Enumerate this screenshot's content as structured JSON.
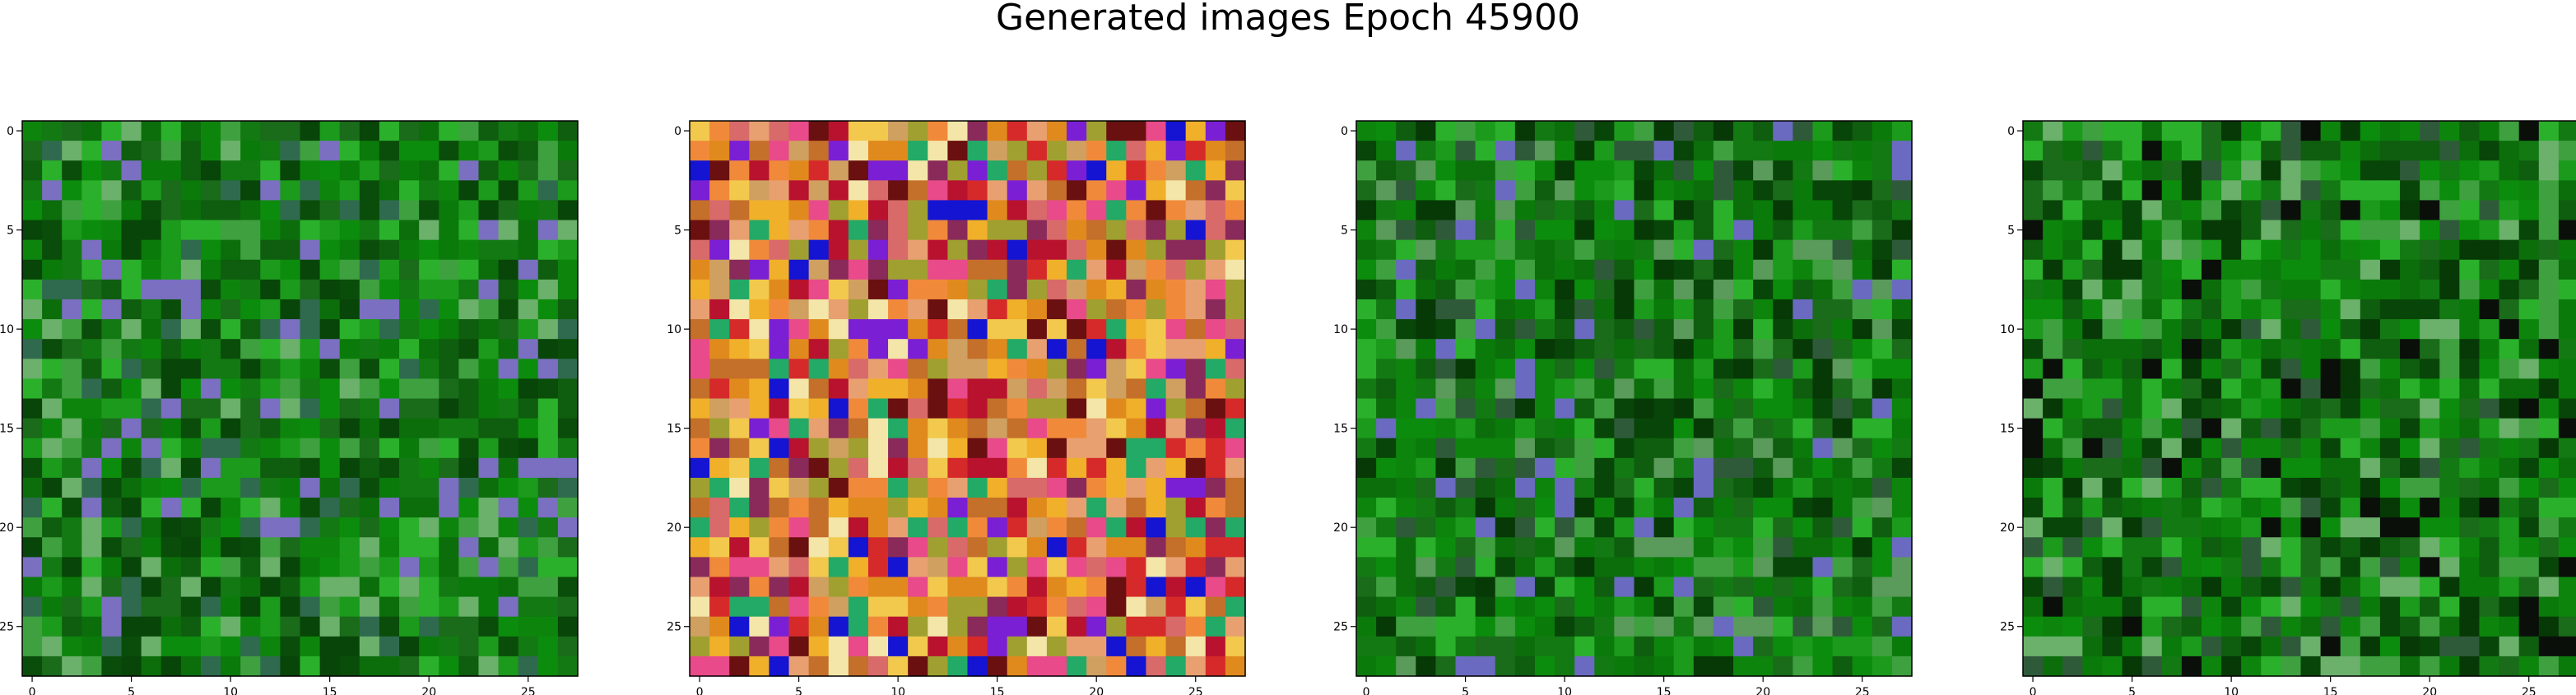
{
  "figure": {
    "title": "Generated images Epoch 45900"
  },
  "chart_data": [
    {
      "type": "heatmap",
      "title": "",
      "xlabel": "",
      "ylabel": "",
      "grid_size": [
        28,
        28
      ],
      "xlim": [
        -0.5,
        27.5
      ],
      "ylim": [
        27.5,
        -0.5
      ],
      "x_ticks": [
        0,
        5,
        10,
        15,
        20,
        25
      ],
      "y_ticks": [
        0,
        5,
        10,
        15,
        20,
        25
      ],
      "grid": false,
      "palette": [
        "#0f5d0f",
        "#0b6e0b",
        "#0a7a0a",
        "#0d850d",
        "#137913",
        "#1a6b1a",
        "#0a4d0a",
        "#084508",
        "#0c8c0c",
        "#1b9a1b",
        "#2bb02b",
        "#3fa03f",
        "#6bb06b",
        "#2f6a4f",
        "#7a6fc0"
      ],
      "seed": 11,
      "highlights": []
    },
    {
      "type": "heatmap",
      "title": "",
      "xlabel": "",
      "ylabel": "",
      "grid_size": [
        28,
        28
      ],
      "xlim": [
        -0.5,
        27.5
      ],
      "ylim": [
        27.5,
        -0.5
      ],
      "x_ticks": [
        0,
        5,
        10,
        15,
        20,
        25
      ],
      "y_ticks": [
        0,
        5,
        10,
        15,
        20,
        25
      ],
      "grid": false,
      "palette": [
        "#e08a1e",
        "#f0b02a",
        "#d62a2a",
        "#b8122e",
        "#f2c94c",
        "#e84a8a",
        "#7b1fd4",
        "#1414d2",
        "#f3e6a8",
        "#c46f2a",
        "#a0a030",
        "#8a2a5a",
        "#d86a6a",
        "#e8a070",
        "#22aa66",
        "#6a1010",
        "#f08a3a",
        "#cfa060"
      ],
      "seed": 29,
      "highlights": []
    },
    {
      "type": "heatmap",
      "title": "",
      "xlabel": "",
      "ylabel": "",
      "grid_size": [
        28,
        28
      ],
      "xlim": [
        -0.5,
        27.5
      ],
      "ylim": [
        27.5,
        -0.5
      ],
      "x_ticks": [
        0,
        5,
        10,
        15,
        20,
        25
      ],
      "y_ticks": [
        0,
        5,
        10,
        15,
        20,
        25
      ],
      "grid": false,
      "palette": [
        "#0f5d0f",
        "#0b6e0b",
        "#0a7a0a",
        "#0d850d",
        "#137913",
        "#1a6b1a",
        "#063906",
        "#084508",
        "#0c8c0c",
        "#1b9a1b",
        "#2bb02b",
        "#3fa03f",
        "#5a9a5a",
        "#2f5a3a",
        "#6a6ac0"
      ],
      "seed": 47,
      "highlights": []
    },
    {
      "type": "heatmap",
      "title": "",
      "xlabel": "",
      "ylabel": "",
      "grid_size": [
        28,
        28
      ],
      "xlim": [
        -0.5,
        27.5
      ],
      "ylim": [
        27.5,
        -0.5
      ],
      "x_ticks": [
        0,
        5,
        10,
        15,
        20,
        25
      ],
      "y_ticks": [
        0,
        5,
        10,
        15,
        20,
        25
      ],
      "grid": false,
      "palette": [
        "#0f5d0f",
        "#0b6e0b",
        "#0a7a0a",
        "#0d850d",
        "#137913",
        "#1a6b1a",
        "#063906",
        "#084508",
        "#0c8c0c",
        "#1b9a1b",
        "#2bb02b",
        "#3fa03f",
        "#6bb06b",
        "#2f5a3a",
        "#0a0f0a"
      ],
      "seed": 83,
      "highlights": []
    }
  ]
}
